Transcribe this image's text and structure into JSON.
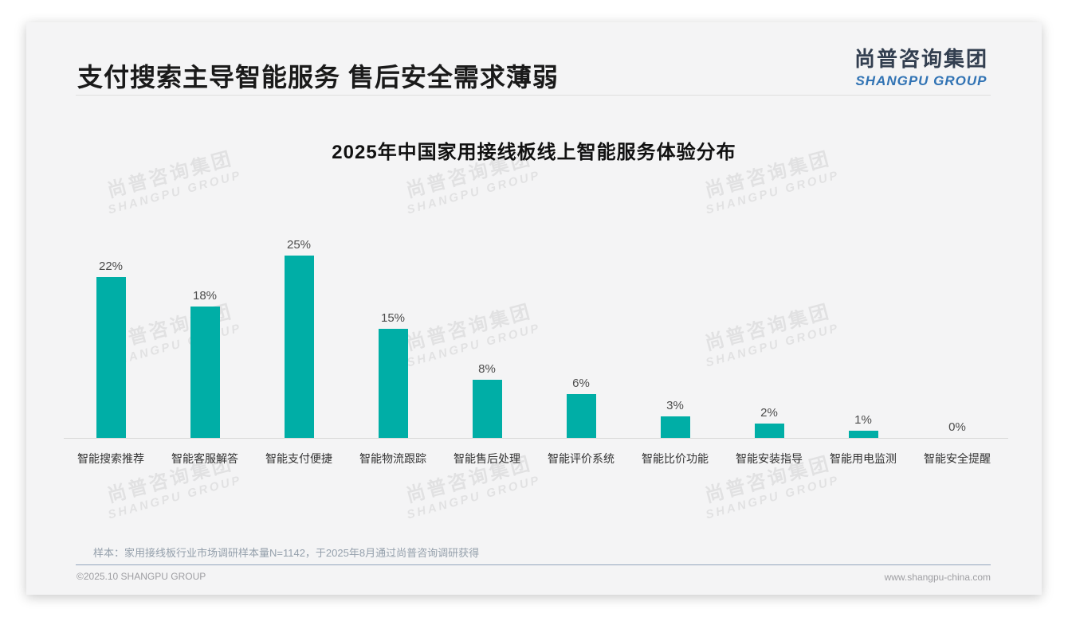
{
  "header": {
    "title": "支付搜索主导智能服务 售后安全需求薄弱",
    "logo": {
      "cn": "尚普咨询集团",
      "en": "SHANGPU GROUP"
    }
  },
  "chart_data": {
    "type": "bar",
    "title": "2025年中国家用接线板线上智能服务体验分布",
    "categories": [
      "智能搜索推荐",
      "智能客服解答",
      "智能支付便捷",
      "智能物流跟踪",
      "智能售后处理",
      "智能评价系统",
      "智能比价功能",
      "智能安装指导",
      "智能用电监测",
      "智能安全提醒"
    ],
    "values": [
      22,
      18,
      25,
      15,
      8,
      6,
      3,
      2,
      1,
      0
    ],
    "value_labels": [
      "22%",
      "18%",
      "25%",
      "15%",
      "8%",
      "6%",
      "3%",
      "2%",
      "1%",
      "0%"
    ],
    "unit": "%",
    "ylim": [
      0,
      25
    ],
    "grid": false,
    "legend": false,
    "bar_color": "#00aea6"
  },
  "watermark": {
    "cn": "尚普咨询集团",
    "en": "SHANGPU GROUP"
  },
  "footnote": "样本：家用接线板行业市场调研样本量N=1142，于2025年8月通过尚普咨询调研获得",
  "footer": {
    "copyright": "©2025.10 SHANGPU GROUP",
    "website": "www.shangpu-china.com"
  },
  "colors": {
    "bar": "#00aea6",
    "logo_cn": "#333f50",
    "logo_en": "#3173b4",
    "axis": "#d7d7d7",
    "footer_rule": "#93a5bd"
  }
}
